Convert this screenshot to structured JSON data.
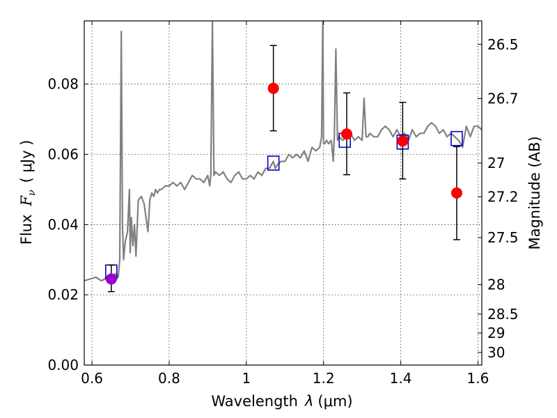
{
  "chart_data": {
    "type": "line",
    "xlabel_prefix": "Wavelength",
    "xlabel_symbol": "λ",
    "xlabel_unit": "(μm)",
    "ylabel_prefix": "Flux",
    "ylabel_symbol": "F",
    "ylabel_subscript": "ν",
    "ylabel_unit": "( μJy )",
    "y2label": "Magnitude (AB)",
    "xlim": [
      0.58,
      1.61
    ],
    "ylim": [
      0.0,
      0.098
    ],
    "grid": true,
    "x_ticks": [
      0.6,
      0.8,
      1.0,
      1.2,
      1.4,
      1.6
    ],
    "x_tick_labels": [
      "0.6",
      "0.8",
      "1",
      "1.2",
      "1.4",
      "1.6"
    ],
    "y_ticks": [
      0.0,
      0.02,
      0.04,
      0.06,
      0.08
    ],
    "y_tick_labels": [
      "0.00",
      "0.02",
      "0.04",
      "0.06",
      "0.08"
    ],
    "y2_ticks": [
      {
        "label": "26.5",
        "flux": 0.0913
      },
      {
        "label": "26.7",
        "flux": 0.0759
      },
      {
        "label": "27",
        "flux": 0.0575
      },
      {
        "label": "27.2",
        "flux": 0.0479
      },
      {
        "label": "27.5",
        "flux": 0.0363
      },
      {
        "label": "28",
        "flux": 0.0229
      },
      {
        "label": "28.5",
        "flux": 0.0145
      },
      {
        "label": "29",
        "flux": 0.0091
      },
      {
        "label": "30",
        "flux": 0.0036
      }
    ],
    "series": [
      {
        "kind": "model_spectrum",
        "color": "#808080",
        "x": [
          0.58,
          0.595,
          0.61,
          0.625,
          0.64,
          0.65,
          0.66,
          0.668,
          0.672,
          0.676,
          0.679,
          0.682,
          0.686,
          0.692,
          0.697,
          0.699,
          0.702,
          0.706,
          0.71,
          0.714,
          0.72,
          0.728,
          0.735,
          0.74,
          0.745,
          0.75,
          0.755,
          0.76,
          0.765,
          0.77,
          0.775,
          0.78,
          0.79,
          0.8,
          0.81,
          0.82,
          0.83,
          0.84,
          0.85,
          0.86,
          0.87,
          0.88,
          0.89,
          0.9,
          0.905,
          0.908,
          0.912,
          0.916,
          0.92,
          0.93,
          0.94,
          0.95,
          0.96,
          0.97,
          0.98,
          0.99,
          1.0,
          1.01,
          1.02,
          1.03,
          1.04,
          1.05,
          1.06,
          1.07,
          1.075,
          1.08,
          1.09,
          1.1,
          1.11,
          1.12,
          1.13,
          1.14,
          1.15,
          1.16,
          1.17,
          1.18,
          1.19,
          1.195,
          1.198,
          1.2,
          1.203,
          1.208,
          1.213,
          1.22,
          1.225,
          1.228,
          1.232,
          1.236,
          1.24,
          1.25,
          1.26,
          1.27,
          1.28,
          1.29,
          1.3,
          1.305,
          1.31,
          1.315,
          1.32,
          1.33,
          1.34,
          1.35,
          1.36,
          1.37,
          1.38,
          1.39,
          1.4,
          1.41,
          1.42,
          1.43,
          1.44,
          1.45,
          1.46,
          1.47,
          1.48,
          1.49,
          1.5,
          1.51,
          1.52,
          1.53,
          1.54,
          1.55,
          1.56,
          1.57,
          1.58,
          1.59,
          1.6,
          1.61
        ],
        "y": [
          0.024,
          0.0245,
          0.025,
          0.024,
          0.025,
          0.025,
          0.026,
          0.025,
          0.03,
          0.095,
          0.04,
          0.03,
          0.035,
          0.038,
          0.05,
          0.032,
          0.042,
          0.034,
          0.04,
          0.031,
          0.047,
          0.048,
          0.046,
          0.042,
          0.038,
          0.047,
          0.049,
          0.048,
          0.05,
          0.049,
          0.05,
          0.05,
          0.051,
          0.051,
          0.052,
          0.051,
          0.052,
          0.05,
          0.052,
          0.054,
          0.053,
          0.053,
          0.052,
          0.054,
          0.051,
          0.054,
          0.098,
          0.054,
          0.055,
          0.054,
          0.055,
          0.053,
          0.052,
          0.054,
          0.055,
          0.053,
          0.053,
          0.054,
          0.053,
          0.055,
          0.054,
          0.056,
          0.056,
          0.058,
          0.056,
          0.057,
          0.058,
          0.058,
          0.06,
          0.059,
          0.06,
          0.059,
          0.061,
          0.058,
          0.062,
          0.061,
          0.062,
          0.065,
          0.098,
          0.063,
          0.063,
          0.064,
          0.063,
          0.064,
          0.058,
          0.065,
          0.09,
          0.064,
          0.065,
          0.064,
          0.065,
          0.066,
          0.064,
          0.065,
          0.064,
          0.076,
          0.065,
          0.065,
          0.066,
          0.065,
          0.065,
          0.067,
          0.068,
          0.067,
          0.065,
          0.067,
          0.065,
          0.066,
          0.064,
          0.067,
          0.065,
          0.066,
          0.066,
          0.068,
          0.069,
          0.068,
          0.066,
          0.067,
          0.065,
          0.066,
          0.065,
          0.064,
          0.062,
          0.068,
          0.065,
          0.068,
          0.068,
          0.067
        ]
      },
      {
        "kind": "model_bandpass_flux",
        "marker": "open-square",
        "color": "#0000cc",
        "x": [
          0.65,
          1.07,
          1.255,
          1.405,
          1.545
        ],
        "y": [
          0.0265,
          0.0575,
          0.064,
          0.0635,
          0.0645
        ]
      },
      {
        "kind": "observed_photometry",
        "marker": "filled-circle",
        "color": "#ff0000",
        "first_point_color": "#9900cc",
        "x": [
          0.65,
          1.07,
          1.26,
          1.405,
          1.545
        ],
        "y": [
          0.0245,
          0.0788,
          0.0658,
          0.0638,
          0.049
        ],
        "yerr_low": [
          0.0036,
          0.0121,
          0.0116,
          0.0108,
          0.0133
        ],
        "yerr_high": [
          0.004,
          0.0122,
          0.0117,
          0.011,
          0.0132
        ]
      }
    ]
  }
}
